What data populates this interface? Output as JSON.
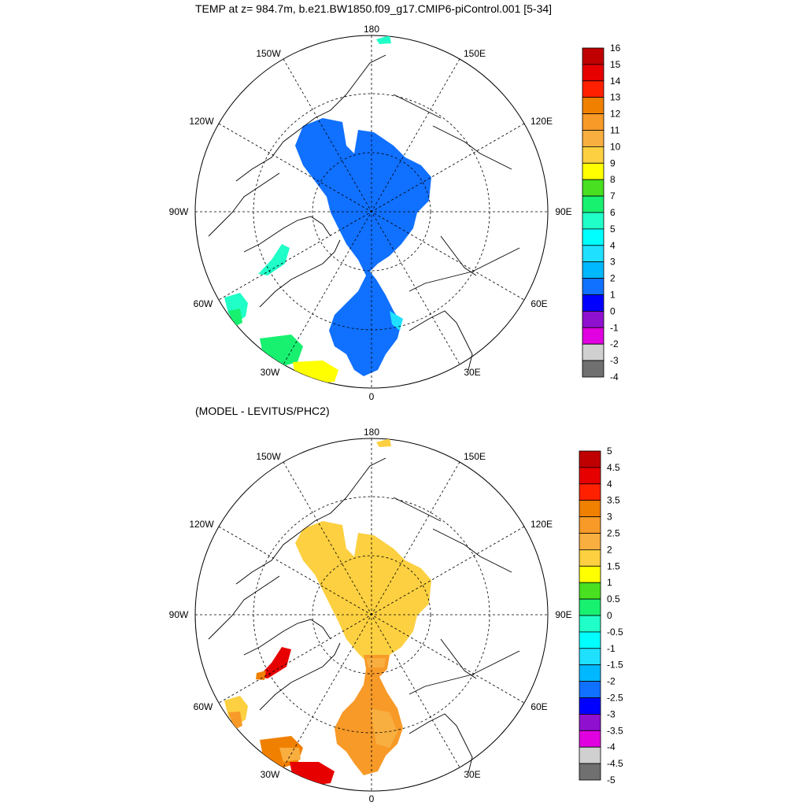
{
  "figure": {
    "title_top": "TEMP at z= 984.7m, b.e21.BW1850.f09_g17.CMIP6-piControl.001 [5-34]",
    "title_bottom": "(MODEL - LEVITUS/PHC2)"
  },
  "longitude_labels": {
    "l180": "180",
    "l0": "0",
    "l150W": "150W",
    "l150E": "150E",
    "l120W": "120W",
    "l120E": "120E",
    "l90W": "90W",
    "l90E": "90E",
    "l60W": "60W",
    "l60E": "60E",
    "l30W": "30W",
    "l30E": "30E"
  },
  "colorbar_top": {
    "labels": [
      "16",
      "15",
      "14",
      "13",
      "12",
      "11",
      "10",
      "9",
      "8",
      "7",
      "6",
      "5",
      "4",
      "3",
      "2",
      "1",
      "0",
      "-1",
      "-2",
      "-3",
      "-4"
    ],
    "colors": [
      "#c00000",
      "#e60000",
      "#ff2000",
      "#f08000",
      "#f79a28",
      "#f9ae40",
      "#fcd040",
      "#ffff00",
      "#48e020",
      "#18f070",
      "#20ffc8",
      "#00ffff",
      "#20e0ff",
      "#00b8ff",
      "#1070ff",
      "#0000ff",
      "#9010d0",
      "#e000e0",
      "#d0d0d0",
      "#707070"
    ]
  },
  "colorbar_bottom": {
    "labels": [
      "5",
      "4.5",
      "4",
      "3.5",
      "3",
      "2.5",
      "2",
      "1.5",
      "1",
      "0.5",
      "0",
      "-0.5",
      "-1",
      "-1.5",
      "-2",
      "-2.5",
      "-3",
      "-3.5",
      "-4",
      "-4.5",
      "-5"
    ],
    "colors": [
      "#c00000",
      "#e60000",
      "#ff2000",
      "#f08000",
      "#f79a28",
      "#f9ae40",
      "#fcd040",
      "#ffff00",
      "#48e020",
      "#18f070",
      "#20ffc8",
      "#00ffff",
      "#20e0ff",
      "#00b8ff",
      "#1070ff",
      "#0000ff",
      "#9010d0",
      "#e000e0",
      "#d0d0d0",
      "#707070"
    ]
  }
}
